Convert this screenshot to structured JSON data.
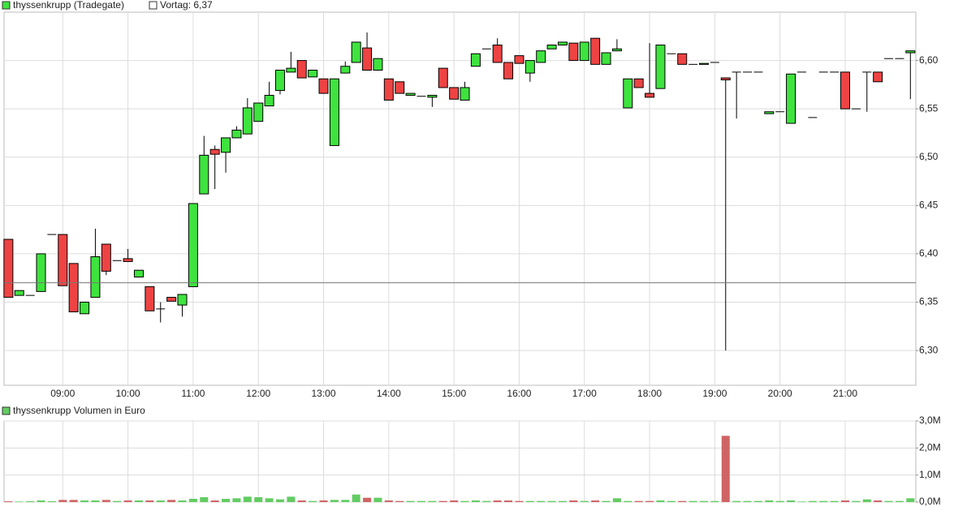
{
  "chart_data": [
    {
      "type": "candlestick",
      "xlim": [
        486,
        1325
      ],
      "xticks": [
        {
          "value": 540,
          "label": "09:00"
        },
        {
          "value": 600,
          "label": "10:00"
        },
        {
          "value": 660,
          "label": "11:00"
        },
        {
          "value": 720,
          "label": "12:00"
        },
        {
          "value": 780,
          "label": "13:00"
        },
        {
          "value": 840,
          "label": "14:00"
        },
        {
          "value": 900,
          "label": "15:00"
        },
        {
          "value": 960,
          "label": "16:00"
        },
        {
          "value": 1020,
          "label": "17:00"
        },
        {
          "value": 1080,
          "label": "18:00"
        },
        {
          "value": 1140,
          "label": "19:00"
        },
        {
          "value": 1200,
          "label": "20:00"
        },
        {
          "value": 1260,
          "label": "21:00"
        }
      ],
      "ylim": [
        6.264,
        6.65
      ],
      "yticks": [
        {
          "value": 6.3,
          "label": "6,30"
        },
        {
          "value": 6.35,
          "label": "6,35"
        },
        {
          "value": 6.4,
          "label": "6,40"
        },
        {
          "value": 6.45,
          "label": "6,45"
        },
        {
          "value": 6.5,
          "label": "6,50"
        },
        {
          "value": 6.55,
          "label": "6,55"
        },
        {
          "value": 6.6,
          "label": "6,60"
        }
      ],
      "grid": true,
      "reference_line": {
        "name": "Vortag: 6,37",
        "value": 6.37
      },
      "x": [
        490,
        500,
        510,
        520,
        530,
        540,
        550,
        560,
        570,
        580,
        590,
        600,
        610,
        620,
        630,
        640,
        650,
        660,
        670,
        680,
        690,
        700,
        710,
        720,
        730,
        740,
        750,
        760,
        770,
        780,
        790,
        800,
        810,
        820,
        830,
        840,
        850,
        860,
        870,
        880,
        890,
        900,
        910,
        920,
        930,
        940,
        950,
        960,
        970,
        980,
        990,
        1000,
        1010,
        1020,
        1030,
        1040,
        1050,
        1060,
        1070,
        1080,
        1090,
        1100,
        1110,
        1120,
        1130,
        1140,
        1150,
        1160,
        1170,
        1180,
        1190,
        1200,
        1210,
        1220,
        1230,
        1240,
        1250,
        1260,
        1270,
        1280,
        1290,
        1300,
        1310,
        1320
      ],
      "series": [
        {
          "name": "thyssenkrupp (Tradegate)",
          "up_color": "#3ee33e",
          "down_color": "#ee4343",
          "open": [
            6.415,
            6.357,
            6.357,
            6.361,
            6.42,
            6.42,
            6.39,
            6.338,
            6.355,
            6.41,
            6.393,
            6.395,
            6.376,
            6.366,
            6.343,
            6.355,
            6.347,
            6.366,
            6.462,
            6.508,
            6.505,
            6.52,
            6.524,
            6.537,
            6.553,
            6.569,
            6.588,
            6.6,
            6.583,
            6.581,
            6.512,
            6.587,
            6.598,
            6.613,
            6.59,
            6.581,
            6.578,
            6.564,
            6.563,
            6.562,
            6.592,
            6.572,
            6.559,
            6.594,
            6.612,
            6.616,
            6.598,
            6.605,
            6.587,
            6.598,
            6.612,
            6.616,
            6.618,
            6.6,
            6.623,
            6.596,
            6.61,
            6.551,
            6.581,
            6.566,
            6.571,
            6.607,
            6.607,
            6.596,
            6.596,
            6.598,
            6.582,
            6.588,
            6.588,
            6.588,
            6.545,
            6.547,
            6.535,
            6.588,
            6.541,
            6.588,
            6.588,
            6.588,
            6.55,
            6.588,
            6.588,
            6.602,
            6.602,
            6.608
          ],
          "high": [
            6.415,
            6.362,
            6.357,
            6.4,
            6.42,
            6.42,
            6.39,
            6.35,
            6.426,
            6.41,
            6.393,
            6.405,
            6.383,
            6.366,
            6.35,
            6.355,
            6.358,
            6.452,
            6.522,
            6.512,
            6.52,
            6.532,
            6.561,
            6.556,
            6.578,
            6.59,
            6.609,
            6.6,
            6.59,
            6.581,
            6.581,
            6.599,
            6.619,
            6.629,
            6.602,
            6.581,
            6.578,
            6.566,
            6.563,
            6.564,
            6.592,
            6.572,
            6.578,
            6.607,
            6.612,
            6.623,
            6.598,
            6.605,
            6.6,
            6.61,
            6.616,
            6.619,
            6.618,
            6.619,
            6.623,
            6.608,
            6.622,
            6.581,
            6.581,
            6.618,
            6.616,
            6.607,
            6.607,
            6.596,
            6.597,
            6.598,
            6.582,
            6.588,
            6.588,
            6.588,
            6.547,
            6.547,
            6.586,
            6.588,
            6.541,
            6.588,
            6.588,
            6.588,
            6.55,
            6.588,
            6.588,
            6.602,
            6.602,
            6.61
          ],
          "low": [
            6.355,
            6.357,
            6.357,
            6.361,
            6.42,
            6.367,
            6.34,
            6.338,
            6.355,
            6.378,
            6.393,
            6.392,
            6.376,
            6.341,
            6.329,
            6.351,
            6.335,
            6.366,
            6.462,
            6.467,
            6.484,
            6.52,
            6.524,
            6.537,
            6.553,
            6.565,
            6.588,
            6.582,
            6.583,
            6.566,
            6.512,
            6.587,
            6.598,
            6.59,
            6.59,
            6.559,
            6.566,
            6.564,
            6.563,
            6.552,
            6.572,
            6.56,
            6.559,
            6.594,
            6.612,
            6.598,
            6.581,
            6.597,
            6.578,
            6.598,
            6.612,
            6.616,
            6.6,
            6.6,
            6.596,
            6.596,
            6.61,
            6.551,
            6.572,
            6.562,
            6.571,
            6.607,
            6.596,
            6.596,
            6.596,
            6.598,
            6.3,
            6.54,
            6.588,
            6.588,
            6.545,
            6.547,
            6.535,
            6.588,
            6.541,
            6.588,
            6.588,
            6.55,
            6.55,
            6.547,
            6.578,
            6.602,
            6.602,
            6.56
          ],
          "close": [
            6.355,
            6.362,
            6.357,
            6.4,
            6.42,
            6.367,
            6.34,
            6.35,
            6.397,
            6.382,
            6.393,
            6.392,
            6.383,
            6.341,
            6.343,
            6.351,
            6.358,
            6.452,
            6.502,
            6.503,
            6.52,
            6.528,
            6.551,
            6.556,
            6.564,
            6.59,
            6.592,
            6.582,
            6.59,
            6.566,
            6.581,
            6.594,
            6.619,
            6.59,
            6.602,
            6.559,
            6.566,
            6.566,
            6.563,
            6.564,
            6.572,
            6.56,
            6.572,
            6.607,
            6.612,
            6.598,
            6.581,
            6.597,
            6.6,
            6.61,
            6.616,
            6.619,
            6.6,
            6.619,
            6.596,
            6.608,
            6.612,
            6.581,
            6.572,
            6.562,
            6.616,
            6.607,
            6.596,
            6.596,
            6.597,
            6.598,
            6.58,
            6.588,
            6.588,
            6.588,
            6.547,
            6.547,
            6.586,
            6.588,
            6.541,
            6.588,
            6.588,
            6.55,
            6.55,
            6.588,
            6.578,
            6.602,
            6.602,
            6.61
          ]
        }
      ]
    },
    {
      "type": "bar",
      "xlim": [
        486,
        1325
      ],
      "ylim": [
        0,
        3000000
      ],
      "yticks": [
        {
          "value": 0,
          "label": "0,0M"
        },
        {
          "value": 1000000,
          "label": "1,0M"
        },
        {
          "value": 2000000,
          "label": "2,0M"
        },
        {
          "value": 3000000,
          "label": "3,0M"
        }
      ],
      "grid": true,
      "x": [
        490,
        500,
        510,
        520,
        530,
        540,
        550,
        560,
        570,
        580,
        590,
        600,
        610,
        620,
        630,
        640,
        650,
        660,
        670,
        680,
        690,
        700,
        710,
        720,
        730,
        740,
        750,
        760,
        770,
        780,
        790,
        800,
        810,
        820,
        830,
        840,
        850,
        860,
        870,
        880,
        890,
        900,
        910,
        920,
        930,
        940,
        950,
        960,
        970,
        980,
        990,
        1000,
        1010,
        1020,
        1030,
        1040,
        1050,
        1060,
        1070,
        1080,
        1090,
        1100,
        1110,
        1120,
        1130,
        1140,
        1150,
        1160,
        1170,
        1180,
        1190,
        1200,
        1210,
        1220,
        1230,
        1240,
        1250,
        1260,
        1270,
        1280,
        1290,
        1300,
        1310,
        1320
      ],
      "series": [
        {
          "name": "thyssenkrupp Volumen in Euro",
          "up_color": "#62cc62",
          "down_color": "#cf6464",
          "values": [
            30000,
            20000,
            30000,
            60000,
            30000,
            80000,
            80000,
            60000,
            60000,
            80000,
            40000,
            60000,
            60000,
            60000,
            60000,
            80000,
            60000,
            120000,
            180000,
            60000,
            120000,
            140000,
            200000,
            180000,
            140000,
            100000,
            200000,
            60000,
            40000,
            60000,
            80000,
            80000,
            280000,
            160000,
            160000,
            60000,
            40000,
            40000,
            40000,
            40000,
            40000,
            60000,
            40000,
            60000,
            40000,
            60000,
            60000,
            40000,
            40000,
            40000,
            40000,
            40000,
            60000,
            40000,
            60000,
            40000,
            140000,
            40000,
            40000,
            40000,
            60000,
            40000,
            40000,
            40000,
            40000,
            40000,
            2450000,
            40000,
            40000,
            40000,
            60000,
            40000,
            60000,
            20000,
            40000,
            40000,
            40000,
            60000,
            40000,
            100000,
            60000,
            40000,
            40000,
            140000
          ]
        }
      ]
    }
  ]
}
